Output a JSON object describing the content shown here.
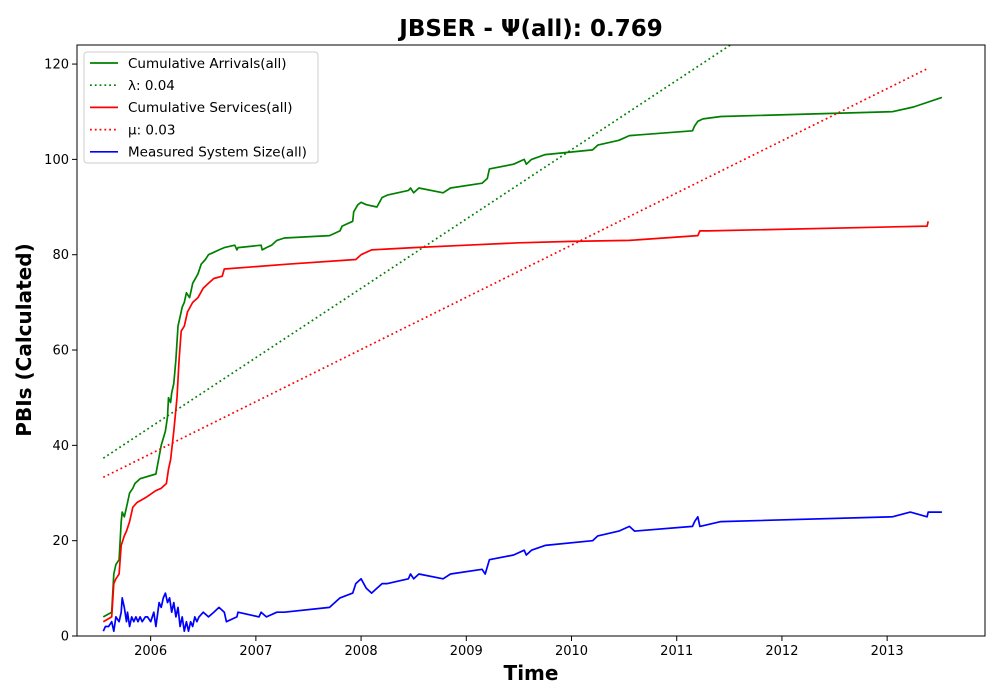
{
  "chart_data": {
    "type": "line",
    "title": "JBSER -  Ψ(all): 0.769",
    "xlabel": "Time",
    "ylabel": "PBIs (Calculated)",
    "xlim": [
      2005.3,
      2013.93
    ],
    "ylim": [
      0,
      124
    ],
    "x_ticks": [
      2006,
      2007,
      2008,
      2009,
      2010,
      2011,
      2012,
      2013
    ],
    "x_tick_labels": [
      "2006",
      "2007",
      "2008",
      "2009",
      "2010",
      "2011",
      "2012",
      "2013"
    ],
    "y_ticks": [
      0,
      20,
      40,
      60,
      80,
      100,
      120
    ],
    "y_tick_labels": [
      "0",
      "20",
      "40",
      "60",
      "80",
      "100",
      "120"
    ],
    "grid": false,
    "legend_position": "top-left",
    "series": [
      {
        "name": "Cumulative Arrivals(all)",
        "color": "#008000",
        "style": "solid",
        "x": [
          2005.55,
          2005.63,
          2005.65,
          2005.67,
          2005.7,
          2005.72,
          2005.73,
          2005.75,
          2005.77,
          2005.8,
          2005.83,
          2005.85,
          2005.9,
          2006.05,
          2006.1,
          2006.14,
          2006.16,
          2006.17,
          2006.19,
          2006.2,
          2006.22,
          2006.24,
          2006.26,
          2006.28,
          2006.3,
          2006.32,
          2006.34,
          2006.37,
          2006.4,
          2006.45,
          2006.48,
          2006.52,
          2006.55,
          2006.6,
          2006.65,
          2006.7,
          2006.8,
          2006.82,
          2006.83,
          2007.05,
          2007.06,
          2007.1,
          2007.15,
          2007.2,
          2007.27,
          2007.7,
          2007.8,
          2007.82,
          2007.92,
          2007.93,
          2007.97,
          2008.0,
          2008.05,
          2008.15,
          2008.2,
          2008.25,
          2008.45,
          2008.47,
          2008.5,
          2008.55,
          2008.78,
          2008.85,
          2009.15,
          2009.2,
          2009.22,
          2009.45,
          2009.55,
          2009.57,
          2009.62,
          2009.75,
          2010.2,
          2010.25,
          2010.45,
          2010.55,
          2011.15,
          2011.17,
          2011.2,
          2011.25,
          2011.42,
          2013.05,
          2013.25,
          2013.52
        ],
        "y": [
          4,
          5,
          13,
          15,
          16,
          24,
          26,
          25,
          27,
          30,
          31,
          32,
          33,
          34,
          40,
          43,
          46,
          50,
          49,
          51,
          53,
          58,
          65,
          67,
          69,
          70,
          72,
          71,
          74,
          76,
          78,
          79,
          80,
          80.5,
          81,
          81.5,
          82,
          81,
          81.5,
          82,
          81,
          81.5,
          82,
          83,
          83.5,
          84,
          85,
          86,
          87,
          89,
          90.5,
          91,
          90.5,
          90,
          92,
          92.5,
          93.5,
          94,
          93,
          94,
          93,
          94,
          95,
          96,
          98,
          99,
          100,
          99,
          100,
          101,
          102,
          103,
          104,
          105,
          106,
          107,
          108,
          108.5,
          109,
          110,
          111,
          113
        ]
      },
      {
        "name": "λ: 0.04",
        "color": "#008000",
        "style": "dotted",
        "x": [
          2005.55,
          2011.51
        ],
        "y": [
          37.3,
          124
        ]
      },
      {
        "name": "Cumulative Services(all)",
        "color": "#ff0000",
        "style": "solid",
        "x": [
          2005.55,
          2005.63,
          2005.65,
          2005.67,
          2005.7,
          2005.72,
          2005.75,
          2005.77,
          2005.8,
          2005.83,
          2005.87,
          2005.95,
          2006.05,
          2006.1,
          2006.15,
          2006.17,
          2006.19,
          2006.22,
          2006.25,
          2006.27,
          2006.29,
          2006.32,
          2006.35,
          2006.4,
          2006.45,
          2006.5,
          2006.55,
          2006.6,
          2006.68,
          2006.7,
          2007.0,
          2007.3,
          2007.95,
          2008.0,
          2008.1,
          2008.5,
          2009.0,
          2009.5,
          2010.0,
          2010.55,
          2011.2,
          2011.22,
          2011.3,
          2013.38,
          2013.39
        ],
        "y": [
          3,
          4,
          11,
          12,
          13,
          19,
          21,
          22,
          24,
          27,
          28,
          29,
          30.5,
          31,
          32,
          35,
          37,
          43,
          50,
          58,
          64,
          65,
          68,
          70,
          71,
          73,
          74,
          75,
          75.5,
          77,
          77.5,
          78,
          79,
          80,
          81,
          81.5,
          82,
          82.5,
          82.8,
          83,
          84,
          85,
          85,
          86,
          87
        ]
      },
      {
        "name": "μ: 0.03",
        "color": "#ff0000",
        "style": "dotted",
        "x": [
          2005.55,
          2013.38
        ],
        "y": [
          33.3,
          119
        ]
      },
      {
        "name": "Measured System Size(all)",
        "color": "#0000ff",
        "style": "solid",
        "x": [
          2005.55,
          2005.57,
          2005.6,
          2005.63,
          2005.65,
          2005.67,
          2005.7,
          2005.72,
          2005.73,
          2005.75,
          2005.77,
          2005.78,
          2005.8,
          2005.82,
          2005.84,
          2005.86,
          2005.88,
          2005.9,
          2005.92,
          2005.95,
          2005.97,
          2006.0,
          2006.03,
          2006.05,
          2006.08,
          2006.1,
          2006.12,
          2006.14,
          2006.16,
          2006.18,
          2006.2,
          2006.22,
          2006.24,
          2006.26,
          2006.28,
          2006.3,
          2006.32,
          2006.34,
          2006.36,
          2006.38,
          2006.4,
          2006.42,
          2006.44,
          2006.46,
          2006.5,
          2006.55,
          2006.6,
          2006.65,
          2006.7,
          2006.72,
          2006.82,
          2006.83,
          2007.03,
          2007.05,
          2007.1,
          2007.2,
          2007.27,
          2007.7,
          2007.8,
          2007.92,
          2007.95,
          2008.0,
          2008.05,
          2008.1,
          2008.15,
          2008.2,
          2008.25,
          2008.45,
          2008.47,
          2008.5,
          2008.55,
          2008.78,
          2008.85,
          2009.15,
          2009.18,
          2009.22,
          2009.45,
          2009.55,
          2009.57,
          2009.62,
          2009.75,
          2010.2,
          2010.25,
          2010.45,
          2010.55,
          2010.6,
          2011.15,
          2011.17,
          2011.2,
          2011.22,
          2011.42,
          2013.05,
          2013.22,
          2013.38,
          2013.39,
          2013.52
        ],
        "y": [
          1,
          2,
          2,
          3,
          1,
          4,
          3,
          5,
          8,
          6,
          3,
          5,
          2,
          4,
          3,
          4,
          3,
          4,
          3,
          4,
          4,
          3,
          5,
          2,
          7,
          6,
          8,
          9,
          7,
          8,
          5,
          7,
          4,
          6,
          2,
          4,
          1,
          3,
          1,
          3,
          2,
          4,
          3,
          4,
          5,
          4,
          5,
          6,
          5,
          3,
          4,
          5,
          4,
          5,
          4,
          5,
          5,
          6,
          8,
          9,
          11,
          12,
          10,
          9,
          10,
          11,
          11,
          12,
          13,
          12,
          13,
          12,
          13,
          14,
          13,
          16,
          17,
          18,
          17,
          18,
          19,
          20,
          21,
          22,
          23,
          22,
          23,
          24,
          25,
          23,
          24,
          25,
          26,
          25,
          26,
          26
        ]
      }
    ]
  }
}
